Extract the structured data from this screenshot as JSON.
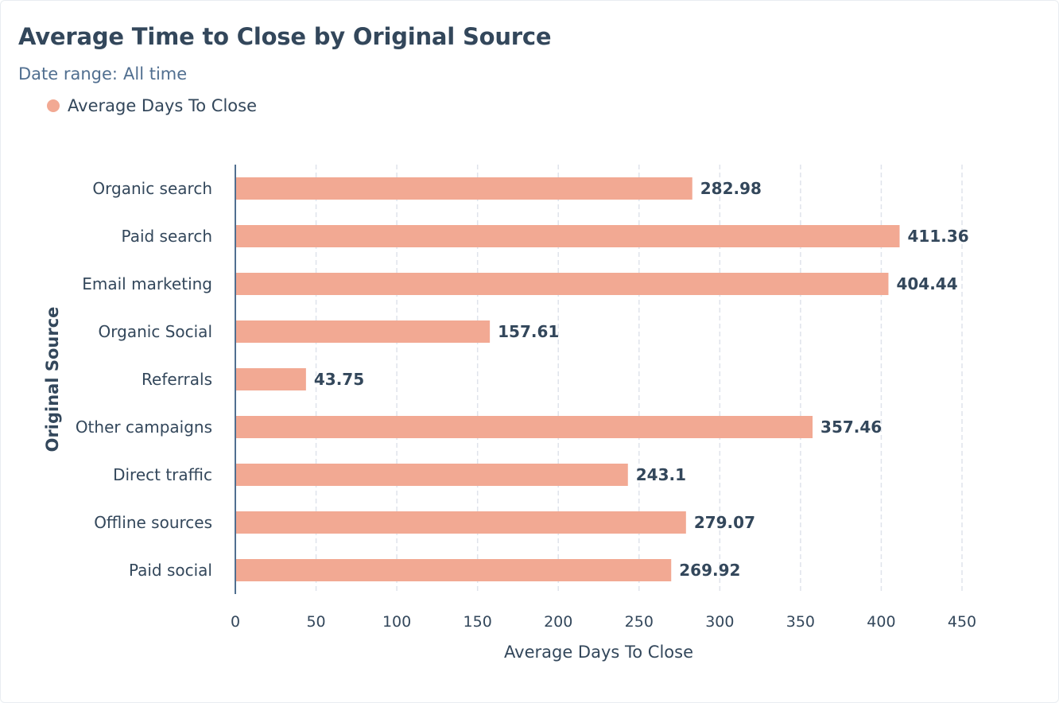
{
  "header": {
    "title": "Average Time to Close by Original Source",
    "date_range_label": "Date range:",
    "date_range_value": "All time"
  },
  "colors": {
    "bar": "#f2a993",
    "axis": "#516f90",
    "grid": "#dfe3eb",
    "text": "#33475b"
  },
  "chart_data": {
    "type": "bar",
    "orientation": "horizontal",
    "title": "Average Time to Close by Original Source",
    "xlabel": "Average Days To Close",
    "ylabel": "Original Source",
    "categories": [
      "Organic search",
      "Paid search",
      "Email marketing",
      "Organic Social",
      "Referrals",
      "Other campaigns",
      "Direct traffic",
      "Offline sources",
      "Paid social"
    ],
    "series": [
      {
        "name": "Average Days To Close",
        "values": [
          282.98,
          411.36,
          404.44,
          157.61,
          43.75,
          357.46,
          243.1,
          279.07,
          269.92
        ]
      }
    ],
    "data_labels": [
      "282.98",
      "411.36",
      "404.44",
      "157.61",
      "43.75",
      "357.46",
      "243.1",
      "279.07",
      "269.92"
    ],
    "xlim": [
      0,
      450
    ],
    "xticks": [
      0,
      50,
      100,
      150,
      200,
      250,
      300,
      350,
      400,
      450
    ],
    "grid": "vertical dashed",
    "legend_position": "top-left"
  }
}
